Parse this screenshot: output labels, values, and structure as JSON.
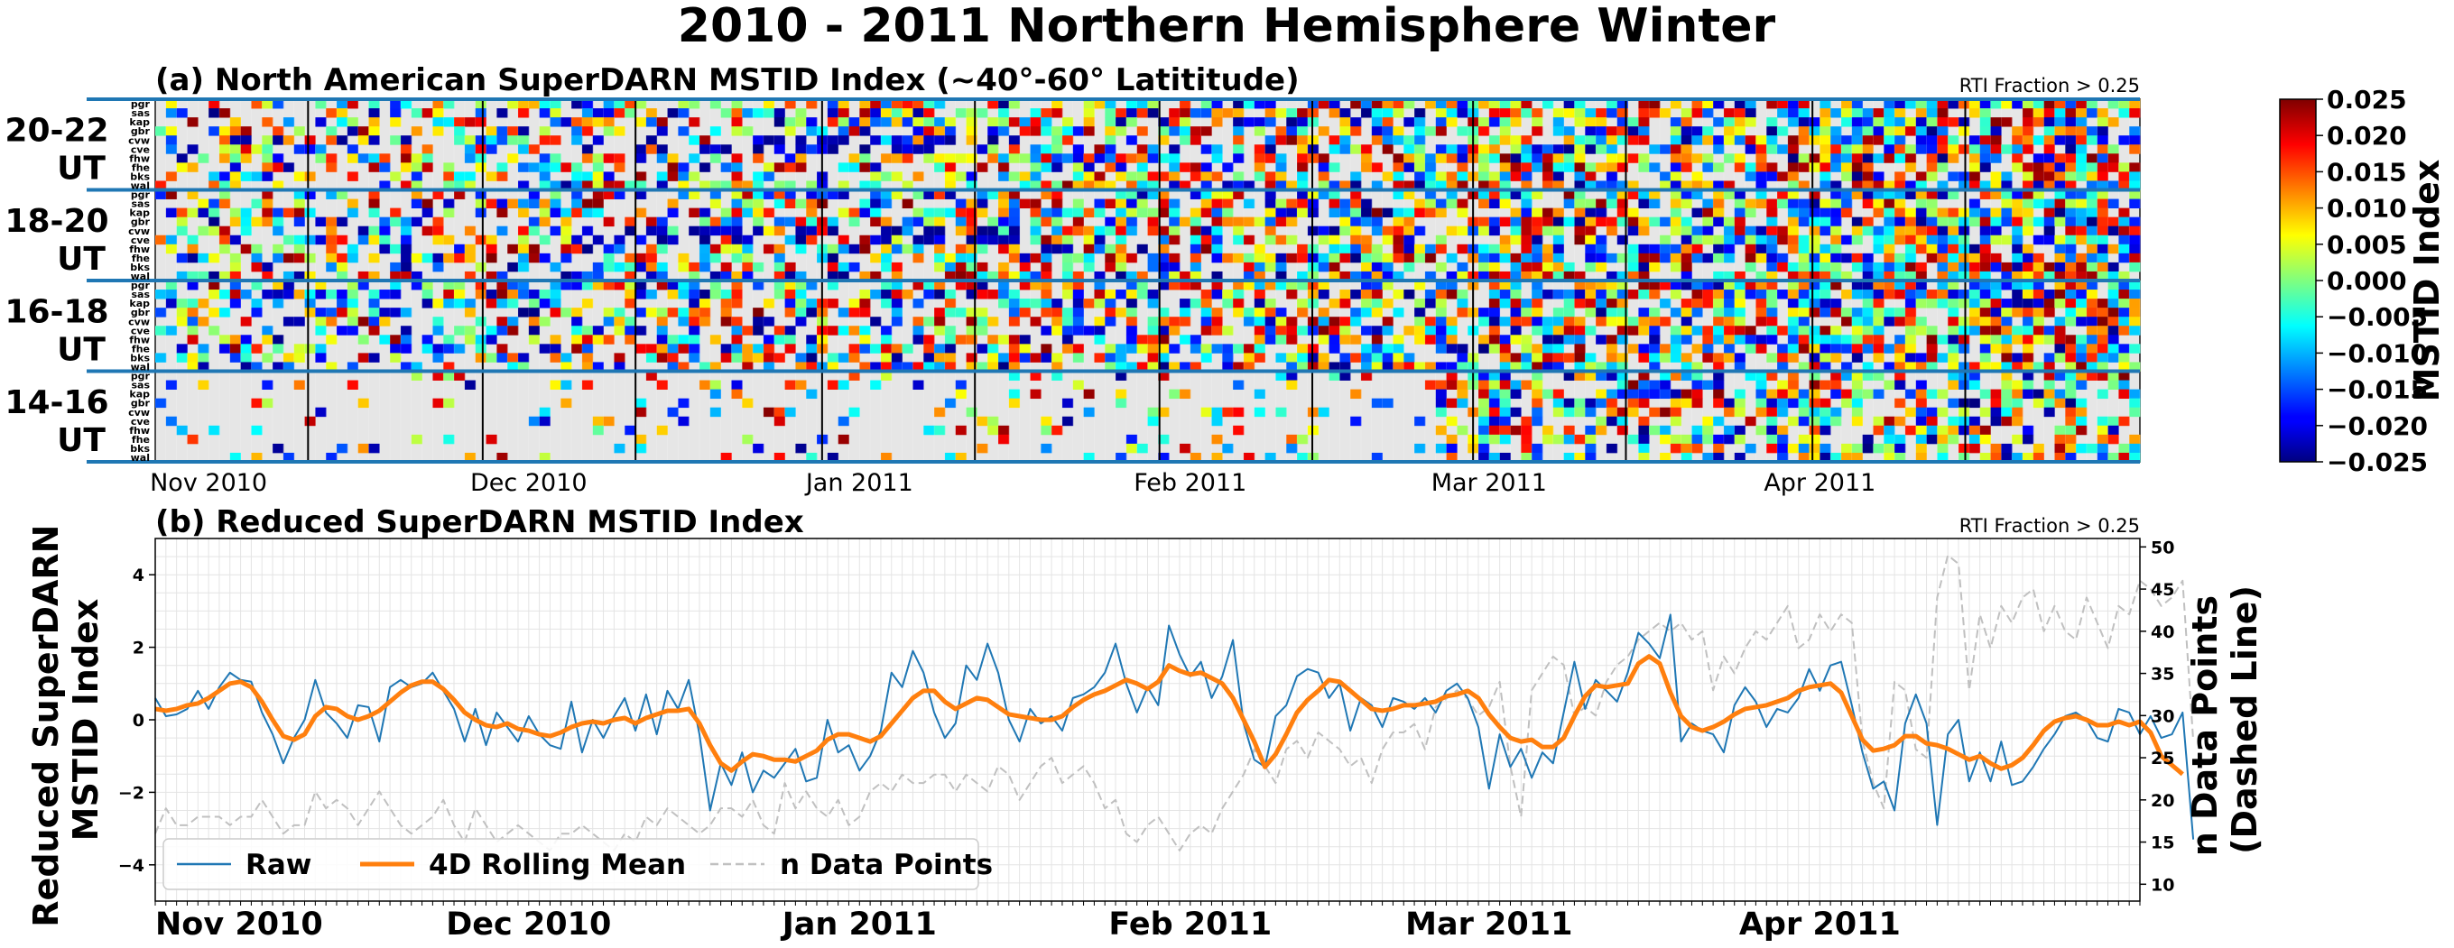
{
  "figure_title": "2010 - 2011 Northern Hemisphere Winter",
  "colors": {
    "raw": "#1f77b4",
    "rolling": "#ff7f0e",
    "npoints": "#c0c0c0",
    "nodata": "#e6e6e6",
    "separator": "#1f77b4"
  },
  "chart_data": [
    {
      "type": "heatmap",
      "panel": "a",
      "title": "(a) North American SuperDARN MSTID Index (~40°-60° Latititude)",
      "annotation": "RTI Fraction > 0.25",
      "time_blocks": [
        "20-22 UT",
        "18-20 UT",
        "16-18 UT",
        "14-16 UT"
      ],
      "radars": [
        "pgr",
        "sas",
        "kap",
        "gbr",
        "cvw",
        "cve",
        "fhw",
        "fhe",
        "bks",
        "wal"
      ],
      "x_ticks": [
        "Nov 2010",
        "Dec 2010",
        "Jan 2011",
        "Feb 2011",
        "Mar 2011",
        "Apr 2011"
      ],
      "x_tick_dates": [
        "2010-11-01",
        "2010-12-01",
        "2011-01-01",
        "2011-02-01",
        "2011-03-01",
        "2011-04-01"
      ],
      "x_range": [
        "2010-10-27",
        "2011-05-01"
      ],
      "colorbar": {
        "label": "MSTID Index",
        "min": -0.025,
        "max": 0.025,
        "ticks": [
          "0.025",
          "0.020",
          "0.015",
          "0.010",
          "0.005",
          "0.000",
          "−0.005",
          "−0.010",
          "−0.015",
          "−0.020",
          "−0.025"
        ],
        "colormap": "jet"
      },
      "note": "Cell values are a dense daily grid per radar; gray cells indicate no data."
    },
    {
      "type": "line",
      "panel": "b",
      "title": "(b) Reduced SuperDARN MSTID Index",
      "annotation": "RTI Fraction > 0.25",
      "ylabel": "Reduced SuperDARN MSTID Index",
      "y2label": "n Data Points (Dashed Line)",
      "ylabel_lines": [
        "Reduced SuperDARN",
        "MSTID Index"
      ],
      "y2label_lines": [
        "n Data Points",
        "(Dashed Line)"
      ],
      "ylim": [
        -5,
        5
      ],
      "y_ticks": [
        "4",
        "2",
        "0",
        "−2",
        "−4"
      ],
      "y2lim": [
        8,
        51
      ],
      "y2_ticks": [
        "50",
        "45",
        "40",
        "35",
        "30",
        "25",
        "20",
        "15",
        "10"
      ],
      "x_ticks": [
        "Nov 2010",
        "Dec 2010",
        "Jan 2011",
        "Feb 2011",
        "Mar 2011",
        "Apr 2011"
      ],
      "x_tick_dates": [
        "2010-11-01",
        "2010-12-01",
        "2011-01-01",
        "2011-02-01",
        "2011-03-01",
        "2011-04-01"
      ],
      "x_range": [
        "2010-10-27",
        "2011-05-01"
      ],
      "grid": true,
      "legend": {
        "placement": "bottom-left"
      },
      "series": [
        {
          "name": "Raw",
          "axis": "left",
          "x_start": "2010-10-27",
          "x_step_days": 1,
          "values": [
            0.6,
            0.1,
            0.15,
            0.3,
            0.8,
            0.3,
            0.9,
            1.3,
            1.1,
            1.05,
            0.2,
            -0.4,
            -1.2,
            -0.5,
            0,
            1.1,
            0.2,
            -0.1,
            -0.5,
            0.4,
            0.35,
            -0.6,
            0.9,
            1.1,
            0.9,
            1.0,
            1.3,
            0.8,
            0.3,
            -0.6,
            0.3,
            -0.7,
            0.2,
            -0.2,
            -0.6,
            0.1,
            -0.4,
            -0.7,
            -0.8,
            0.5,
            -0.9,
            0.0,
            -0.5,
            0.1,
            0.6,
            -0.3,
            0.7,
            -0.4,
            0.8,
            0.3,
            1.1,
            -0.4,
            -2.5,
            -1.2,
            -1.8,
            -0.9,
            -2.0,
            -1.4,
            -1.6,
            -1.2,
            -0.8,
            -1.7,
            -1.6,
            0.0,
            -0.9,
            -0.7,
            -1.4,
            -1.0,
            -0.3,
            1.3,
            0.9,
            1.9,
            1.3,
            0.2,
            -0.5,
            -0.1,
            1.5,
            1.1,
            2.1,
            1.3,
            0.0,
            -0.6,
            0.3,
            -0.1,
            0.1,
            -0.3,
            0.6,
            0.7,
            0.9,
            1.3,
            2.1,
            1.0,
            0.2,
            0.9,
            0.4,
            2.6,
            1.8,
            1.2,
            1.6,
            0.6,
            1.2,
            2.2,
            -0.1,
            -1.1,
            -1.3,
            0.1,
            0.4,
            1.2,
            1.4,
            1.3,
            0.6,
            1.0,
            -0.3,
            0.6,
            0.4,
            -0.2,
            0.6,
            0.5,
            0.3,
            0.6,
            0.2,
            0.8,
            1.0,
            0.6,
            -0.2,
            -1.9,
            -0.4,
            -1.3,
            -0.8,
            -1.6,
            -0.9,
            -1.2,
            0.2,
            1.6,
            0.3,
            1.1,
            0.8,
            0.5,
            1.3,
            2.4,
            2.1,
            1.7,
            2.9,
            -0.6,
            -0.1,
            -0.3,
            -0.4,
            -0.9,
            0.4,
            0.9,
            0.5,
            -0.2,
            0.3,
            0.2,
            0.6,
            1.4,
            0.8,
            1.5,
            1.6,
            0.4,
            -0.9,
            -1.9,
            -1.7,
            -2.5,
            -0.1,
            0.7,
            -0.1,
            -2.9,
            -0.4,
            0.0,
            -1.7,
            -0.9,
            -1.7,
            -0.6,
            -1.8,
            -1.7,
            -1.3,
            -0.8,
            -0.4,
            0.1,
            0.2,
            0.0,
            -0.5,
            -0.6,
            0.3,
            0.2,
            -0.4,
            0.1,
            -0.5,
            -0.4,
            0.2,
            -3.3
          ]
        },
        {
          "name": "4D Rolling Mean",
          "axis": "left",
          "x_start": "2010-10-27",
          "x_step_days": 1,
          "values": [
            0.3,
            0.25,
            0.3,
            0.4,
            0.45,
            0.6,
            0.8,
            1.0,
            1.05,
            0.9,
            0.5,
            0.0,
            -0.45,
            -0.55,
            -0.4,
            0.1,
            0.35,
            0.3,
            0.1,
            0.0,
            0.1,
            0.25,
            0.5,
            0.75,
            0.95,
            1.05,
            1.05,
            0.85,
            0.55,
            0.2,
            0.0,
            -0.15,
            -0.2,
            -0.1,
            -0.25,
            -0.3,
            -0.4,
            -0.45,
            -0.35,
            -0.2,
            -0.1,
            -0.05,
            -0.1,
            0.0,
            0.05,
            -0.1,
            0.05,
            0.15,
            0.25,
            0.25,
            0.3,
            -0.1,
            -0.7,
            -1.2,
            -1.4,
            -1.15,
            -0.95,
            -1.0,
            -1.1,
            -1.1,
            -1.15,
            -1.0,
            -0.85,
            -0.55,
            -0.4,
            -0.4,
            -0.5,
            -0.6,
            -0.45,
            -0.1,
            0.25,
            0.6,
            0.8,
            0.8,
            0.5,
            0.3,
            0.45,
            0.6,
            0.55,
            0.35,
            0.15,
            0.1,
            0.05,
            0.0,
            0.0,
            0.1,
            0.35,
            0.55,
            0.7,
            0.8,
            0.95,
            1.1,
            1.0,
            0.85,
            1.05,
            1.5,
            1.35,
            1.25,
            1.3,
            1.15,
            1.0,
            0.6,
            0.0,
            -0.6,
            -1.3,
            -0.95,
            -0.4,
            0.2,
            0.55,
            0.8,
            1.1,
            1.05,
            0.8,
            0.55,
            0.3,
            0.25,
            0.3,
            0.4,
            0.4,
            0.45,
            0.5,
            0.65,
            0.7,
            0.8,
            0.6,
            0.15,
            -0.2,
            -0.5,
            -0.6,
            -0.55,
            -0.75,
            -0.75,
            -0.5,
            0.1,
            0.65,
            0.95,
            0.9,
            0.95,
            1.0,
            1.55,
            1.75,
            1.55,
            0.75,
            0.1,
            -0.2,
            -0.3,
            -0.2,
            -0.05,
            0.15,
            0.3,
            0.35,
            0.4,
            0.5,
            0.6,
            0.8,
            0.9,
            0.95,
            1.0,
            0.75,
            0.1,
            -0.55,
            -0.85,
            -0.8,
            -0.7,
            -0.45,
            -0.45,
            -0.65,
            -0.7,
            -0.8,
            -0.95,
            -1.1,
            -1.0,
            -1.2,
            -1.35,
            -1.25,
            -1.05,
            -0.7,
            -0.3,
            -0.05,
            0.05,
            0.1,
            0.0,
            -0.15,
            -0.15,
            -0.05,
            -0.15,
            -0.05,
            -0.35,
            -1.0,
            -1.25,
            -1.5
          ]
        },
        {
          "name": "n Data Points",
          "axis": "right",
          "style": "dashed",
          "x_start": "2010-10-27",
          "x_step_days": 1,
          "values": [
            16,
            19,
            17,
            17,
            18,
            18,
            18,
            17,
            18,
            18,
            20,
            18,
            16,
            17,
            17,
            21,
            19,
            20,
            19,
            17,
            19,
            21,
            19,
            17,
            16,
            17,
            18,
            20,
            17,
            15,
            19,
            17,
            15,
            16,
            17,
            16,
            15,
            14,
            16,
            16,
            17,
            16,
            15,
            14,
            16,
            15,
            18,
            17,
            19,
            18,
            17,
            16,
            17,
            19,
            19,
            18,
            20,
            17,
            16,
            22,
            19,
            21,
            19,
            18,
            20,
            17,
            18,
            21,
            22,
            21,
            23,
            22,
            22,
            23,
            23,
            21,
            23,
            22,
            21,
            24,
            23,
            20,
            22,
            24,
            25,
            22,
            23,
            24,
            22,
            19,
            20,
            16,
            15,
            17,
            18,
            16,
            14,
            16,
            17,
            16,
            19,
            21,
            23,
            26,
            24,
            22,
            26,
            27,
            25,
            28,
            27,
            26,
            24,
            25,
            22,
            26,
            28,
            28,
            29,
            26,
            31,
            32,
            33,
            32,
            30,
            31,
            34,
            24,
            18,
            33,
            35,
            37,
            36,
            30,
            31,
            30,
            34,
            36,
            37,
            39,
            40,
            41,
            40,
            41,
            39,
            40,
            33,
            37,
            35,
            38,
            40,
            39,
            41,
            43,
            38,
            39,
            42,
            40,
            42,
            41,
            27,
            22,
            19,
            34,
            33,
            26,
            25,
            44,
            49,
            48,
            33,
            42,
            38,
            43,
            41,
            44,
            45,
            40,
            43,
            40,
            39,
            44,
            41,
            38,
            43,
            42,
            46,
            45,
            43,
            44,
            46,
            27
          ]
        }
      ]
    }
  ]
}
